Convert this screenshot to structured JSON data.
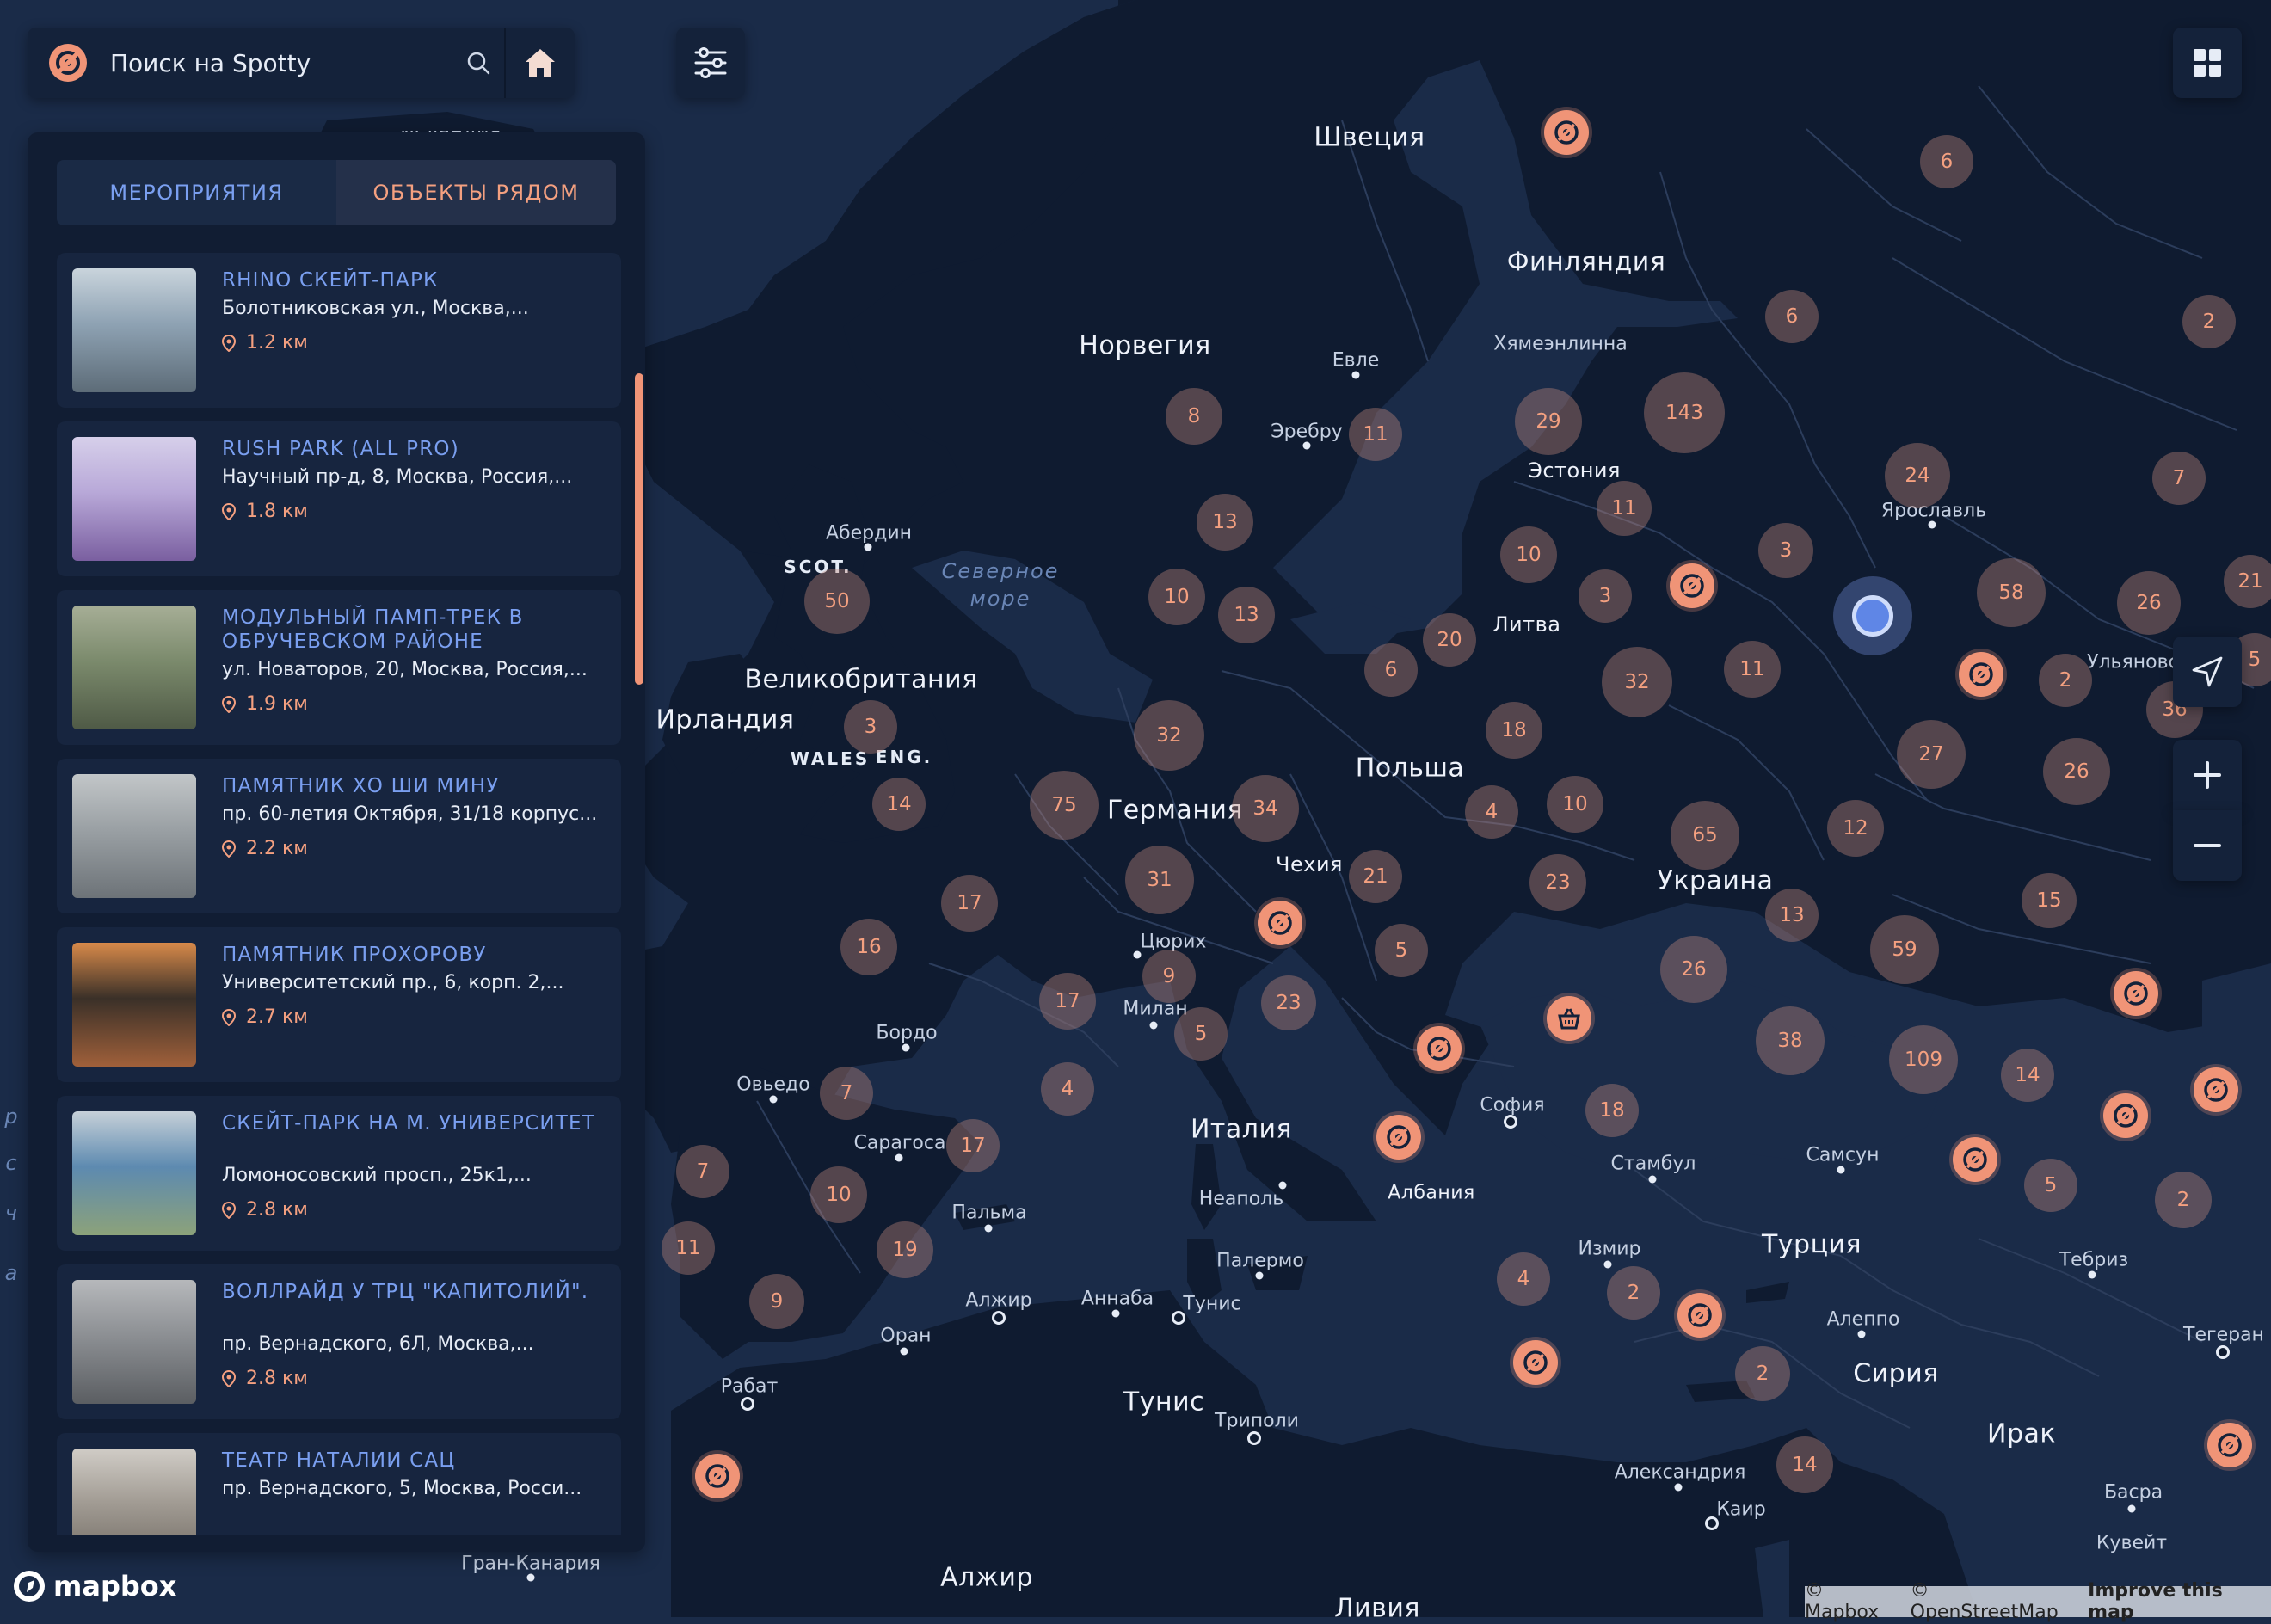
{
  "search": {
    "placeholder": "Поиск на Spotty"
  },
  "tabs": [
    {
      "label": "МЕРОПРИЯТИЯ"
    },
    {
      "label": "ОБЪЕКТЫ РЯДОМ"
    }
  ],
  "places": [
    {
      "title": "RHINO СКЕЙТ-ПАРК",
      "address": "Болотниковская ул., Москва,...",
      "distance": "1.2 км"
    },
    {
      "title": "RUSH PARK (ALL PRO)",
      "address": "Научный пр-д, 8, Москва, Россия,...",
      "distance": "1.8 км"
    },
    {
      "title": "МОДУЛЬНЫЙ ПАМП-ТРЕК В ОБРУЧЕВСКОМ РАЙОНЕ",
      "address": "ул. Новаторов, 20, Москва, Россия,...",
      "distance": "1.9 км"
    },
    {
      "title": "ПАМЯТНИК ХО ШИ МИНУ",
      "address": "пр. 60-летия Октября, 31/18 корпус...",
      "distance": "2.2 км"
    },
    {
      "title": "ПАМЯТНИК ПРОХОРОВУ",
      "address": "Университетский пр., 6, корп. 2,...",
      "distance": "2.7 км"
    },
    {
      "title": "СКЕЙТ-ПАРК НА М. УНИВЕРСИТЕТ",
      "address": "Ломоносовский просп., 25к1,...",
      "distance": "2.8 км"
    },
    {
      "title": "ВОЛЛРАЙД У ТРЦ \"КАПИТОЛИЙ\".",
      "address": "пр. Вернадского, 6Л, Москва,...",
      "distance": "2.8 км"
    },
    {
      "title": "ТЕАТР НАТАЛИИ САЦ",
      "address": "пр. Вернадского, 5, Москва, Росси...",
      "distance": ""
    }
  ],
  "map_labels": {
    "countries": [
      "Швеция",
      "Финляндия",
      "Норвегия",
      "Эстония",
      "Литва",
      "Великобритания",
      "Ирландия",
      "Польша",
      "Германия",
      "Чехия",
      "Украина",
      "Италия",
      "Албания",
      "Турция",
      "Сирия",
      "Тунис",
      "Ирак",
      "Алжир",
      "Ливия"
    ],
    "cities": [
      "Евле",
      "Хямеэнлинна",
      "Эребру",
      "Ярославль",
      "Ульяновск",
      "Абердин",
      "Цюрих",
      "Милан",
      "Бордо",
      "Овьедо",
      "Сарагоса",
      "Пальма",
      "Неаполь",
      "Палермо",
      "София",
      "Стамбул",
      "Самсун",
      "Измир",
      "Тебриз",
      "Алеппо",
      "Тегеран",
      "Алжир",
      "Аннаба",
      "Тунис",
      "Оран",
      "Рабат",
      "Триполи",
      "Александрия",
      "Каир",
      "Басра",
      "Кувейт",
      "Гран-Канария"
    ],
    "regions": [
      "SCOT.",
      "WALES",
      "ENG."
    ],
    "seas": [
      "Северное\nморе"
    ],
    "partial_left": [
      "р",
      "с",
      "ч",
      "а"
    ],
    "partial_top": "Исландия"
  },
  "clusters": [
    "6",
    "2",
    "6",
    "7",
    "29",
    "143",
    "8",
    "11",
    "24",
    "13",
    "11",
    "3",
    "58",
    "26",
    "10",
    "10",
    "3",
    "13",
    "50",
    "20",
    "6",
    "11",
    "32",
    "2",
    "3",
    "32",
    "18",
    "27",
    "26",
    "14",
    "75",
    "34",
    "4",
    "10",
    "65",
    "12",
    "31",
    "21",
    "23",
    "17",
    "16",
    "13",
    "15",
    "9",
    "5",
    "59",
    "26",
    "17",
    "23",
    "5",
    "38",
    "109",
    "14",
    "4",
    "7",
    "18",
    "7",
    "17",
    "10",
    "5",
    "2",
    "11",
    "19",
    "4",
    "2",
    "9",
    "2",
    "14",
    "21",
    "5",
    "36"
  ],
  "attribution": {
    "mapbox": "© Mapbox",
    "osm": "© OpenStreetMap",
    "improve": "Improve this map"
  },
  "mapbox_logo": "mapbox",
  "colors": {
    "accent": "#f09477",
    "link": "#7a9ff0",
    "panel": "#111d33",
    "map_land": "#0f1b30",
    "map_water": "#1a2b48"
  },
  "icons": [
    "spotty-logo-icon",
    "search-icon",
    "home-icon",
    "filter-icon",
    "grid-icon",
    "locate-icon",
    "plus-icon",
    "minus-icon",
    "pin-location-icon",
    "basket-icon"
  ]
}
